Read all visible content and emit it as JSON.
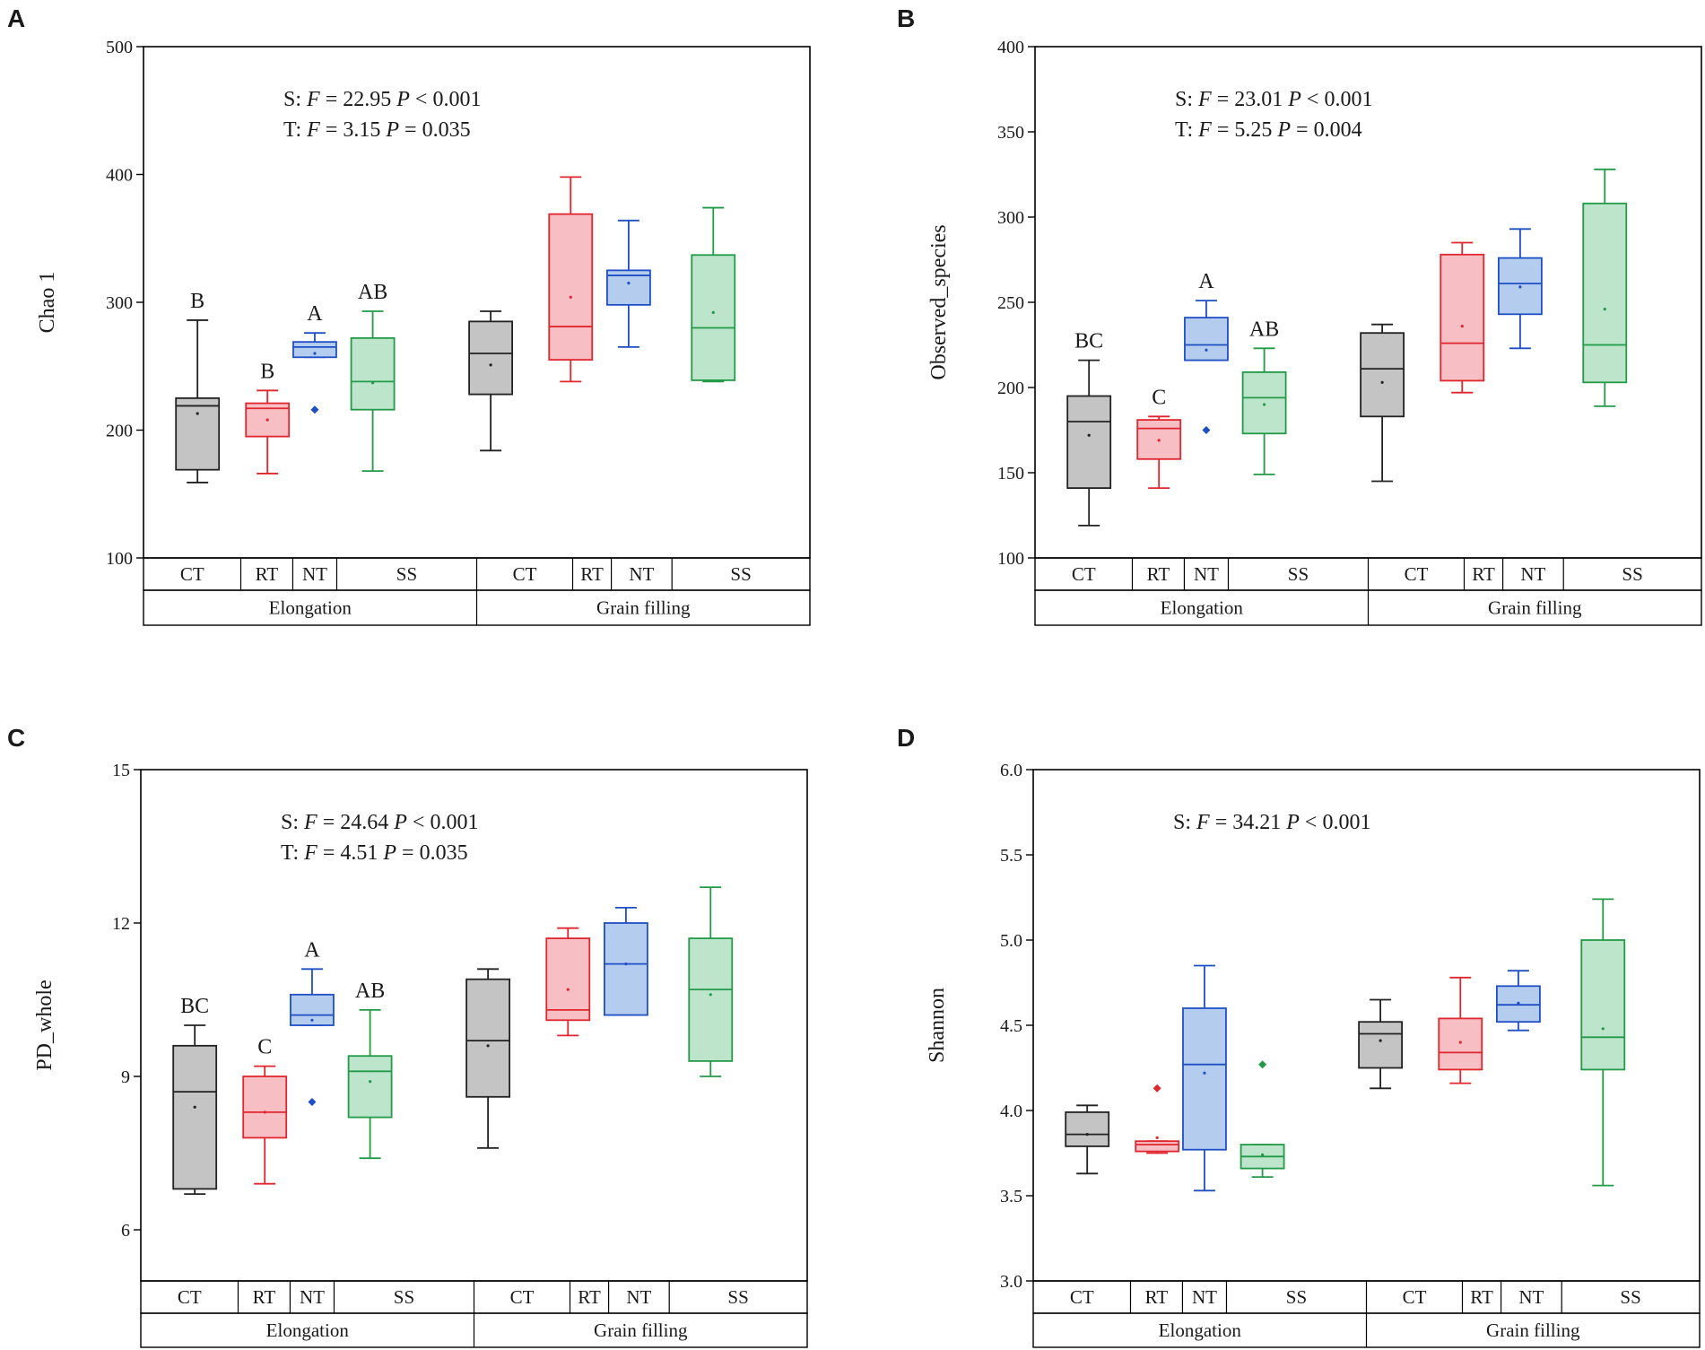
{
  "colors": {
    "CT": {
      "fill": "#c4c4c4",
      "stroke": "#222222"
    },
    "RT": {
      "fill": "#f7bfc3",
      "stroke": "#e0262e"
    },
    "NT": {
      "fill": "#b4cdee",
      "stroke": "#1f4fc4"
    },
    "SS": {
      "fill": "#bde5cc",
      "stroke": "#239a48"
    },
    "axis": "#000000"
  },
  "chart_data": [
    {
      "panel": "A",
      "type": "box",
      "ylabel": "Chao 1",
      "ylim": [
        100,
        500
      ],
      "yticks": [
        100,
        200,
        300,
        400,
        500
      ],
      "groups": [
        "CT",
        "RT",
        "NT",
        "SS",
        "CT",
        "RT",
        "NT",
        "SS"
      ],
      "stages": [
        "Elongation",
        "Grain filling"
      ],
      "stats": [
        "S: F = 22.95  P < 0.001",
        "T: F = 3.15  P = 0.035"
      ],
      "letters": [
        "B",
        "B",
        "A",
        "AB",
        "",
        "",
        "",
        ""
      ],
      "boxes": [
        {
          "min": 159,
          "q1": 169,
          "median": 219,
          "q3": 225,
          "max": 286,
          "mean": 213,
          "outliers": []
        },
        {
          "min": 166,
          "q1": 195,
          "median": 217,
          "q3": 221,
          "max": 231,
          "mean": 208,
          "outliers": []
        },
        {
          "min": 257,
          "q1": 257,
          "median": 265,
          "q3": 269,
          "max": 276,
          "mean": 260,
          "outliers": [
            216
          ]
        },
        {
          "min": 168,
          "q1": 216,
          "median": 238,
          "q3": 272,
          "max": 293,
          "mean": 237,
          "outliers": []
        },
        {
          "min": 184,
          "q1": 228,
          "median": 260,
          "q3": 285,
          "max": 293,
          "mean": 251,
          "outliers": []
        },
        {
          "min": 238,
          "q1": 255,
          "median": 281,
          "q3": 369,
          "max": 398,
          "mean": 304,
          "outliers": []
        },
        {
          "min": 265,
          "q1": 298,
          "median": 321,
          "q3": 325,
          "max": 364,
          "mean": 315,
          "outliers": []
        },
        {
          "min": 238,
          "q1": 239,
          "median": 280,
          "q3": 337,
          "max": 374,
          "mean": 292,
          "outliers": []
        }
      ]
    },
    {
      "panel": "B",
      "type": "box",
      "ylabel": "Observed_species",
      "ylim": [
        100,
        400
      ],
      "yticks": [
        100,
        150,
        200,
        250,
        300,
        350,
        400
      ],
      "groups": [
        "CT",
        "RT",
        "NT",
        "SS",
        "CT",
        "RT",
        "NT",
        "SS"
      ],
      "stages": [
        "Elongation",
        "Grain filling"
      ],
      "stats": [
        "S: F = 23.01  P < 0.001",
        "T: F = 5.25  P = 0.004"
      ],
      "letters": [
        "BC",
        "C",
        "A",
        "AB",
        "",
        "",
        "",
        ""
      ],
      "boxes": [
        {
          "min": 119,
          "q1": 141,
          "median": 180,
          "q3": 195,
          "max": 216,
          "mean": 172,
          "outliers": []
        },
        {
          "min": 141,
          "q1": 158,
          "median": 176,
          "q3": 181,
          "max": 183,
          "mean": 169,
          "outliers": []
        },
        {
          "min": 216,
          "q1": 216,
          "median": 225,
          "q3": 241,
          "max": 251,
          "mean": 222,
          "outliers": [
            175
          ]
        },
        {
          "min": 149,
          "q1": 173,
          "median": 194,
          "q3": 209,
          "max": 223,
          "mean": 190,
          "outliers": []
        },
        {
          "min": 145,
          "q1": 183,
          "median": 211,
          "q3": 232,
          "max": 237,
          "mean": 203,
          "outliers": []
        },
        {
          "min": 197,
          "q1": 204,
          "median": 226,
          "q3": 278,
          "max": 285,
          "mean": 236,
          "outliers": []
        },
        {
          "min": 223,
          "q1": 243,
          "median": 261,
          "q3": 276,
          "max": 293,
          "mean": 259,
          "outliers": []
        },
        {
          "min": 189,
          "q1": 203,
          "median": 225,
          "q3": 308,
          "max": 328,
          "mean": 246,
          "outliers": []
        }
      ]
    },
    {
      "panel": "C",
      "type": "box",
      "ylabel": "PD_whole",
      "ylim": [
        5,
        15
      ],
      "yticks": [
        6,
        9,
        12,
        15
      ],
      "groups": [
        "CT",
        "RT",
        "NT",
        "SS",
        "CT",
        "RT",
        "NT",
        "SS"
      ],
      "stages": [
        "Elongation",
        "Grain filling"
      ],
      "stats": [
        "S: F = 24.64  P < 0.001",
        "T: F = 4.51  P = 0.035"
      ],
      "letters": [
        "BC",
        "C",
        "A",
        "AB",
        "",
        "",
        "",
        ""
      ],
      "boxes": [
        {
          "min": 6.7,
          "q1": 6.8,
          "median": 8.7,
          "q3": 9.6,
          "max": 10.0,
          "mean": 8.4,
          "outliers": []
        },
        {
          "min": 6.9,
          "q1": 7.8,
          "median": 8.3,
          "q3": 9.0,
          "max": 9.2,
          "mean": 8.3,
          "outliers": []
        },
        {
          "min": 10.0,
          "q1": 10.0,
          "median": 10.2,
          "q3": 10.6,
          "max": 11.1,
          "mean": 10.1,
          "outliers": [
            8.5
          ]
        },
        {
          "min": 7.4,
          "q1": 8.2,
          "median": 9.1,
          "q3": 9.4,
          "max": 10.3,
          "mean": 8.9,
          "outliers": []
        },
        {
          "min": 7.6,
          "q1": 8.6,
          "median": 9.7,
          "q3": 10.9,
          "max": 11.1,
          "mean": 9.6,
          "outliers": []
        },
        {
          "min": 9.8,
          "q1": 10.1,
          "median": 10.3,
          "q3": 11.7,
          "max": 11.9,
          "mean": 10.7,
          "outliers": []
        },
        {
          "min": 10.2,
          "q1": 10.2,
          "median": 11.2,
          "q3": 12.0,
          "max": 12.3,
          "mean": 11.2,
          "outliers": []
        },
        {
          "min": 9.0,
          "q1": 9.3,
          "median": 10.7,
          "q3": 11.7,
          "max": 12.7,
          "mean": 10.6,
          "outliers": []
        }
      ]
    },
    {
      "panel": "D",
      "type": "box",
      "ylabel": "Shannon",
      "ylim": [
        3.0,
        6.0
      ],
      "yticks": [
        "3.0",
        "3.5",
        "4.0",
        "4.5",
        "5.0",
        "5.5",
        "6.0"
      ],
      "groups": [
        "CT",
        "RT",
        "NT",
        "SS",
        "CT",
        "RT",
        "NT",
        "SS"
      ],
      "stages": [
        "Elongation",
        "Grain filling"
      ],
      "stats": [
        "S: F = 34.21  P < 0.001"
      ],
      "letters": [
        "",
        "",
        "",
        "",
        "",
        "",
        "",
        ""
      ],
      "boxes": [
        {
          "min": 3.63,
          "q1": 3.79,
          "median": 3.86,
          "q3": 3.99,
          "max": 4.03,
          "mean": 3.86,
          "outliers": []
        },
        {
          "min": 3.75,
          "q1": 3.76,
          "median": 3.8,
          "q3": 3.82,
          "max": 3.82,
          "mean": 3.84,
          "outliers": [
            4.13
          ]
        },
        {
          "min": 3.53,
          "q1": 3.77,
          "median": 4.27,
          "q3": 4.6,
          "max": 4.85,
          "mean": 4.22,
          "outliers": []
        },
        {
          "min": 3.61,
          "q1": 3.66,
          "median": 3.73,
          "q3": 3.8,
          "max": 3.8,
          "mean": 3.74,
          "outliers": [
            4.27
          ]
        },
        {
          "min": 4.13,
          "q1": 4.25,
          "median": 4.45,
          "q3": 4.52,
          "max": 4.65,
          "mean": 4.41,
          "outliers": []
        },
        {
          "min": 4.16,
          "q1": 4.24,
          "median": 4.34,
          "q3": 4.54,
          "max": 4.78,
          "mean": 4.4,
          "outliers": []
        },
        {
          "min": 4.47,
          "q1": 4.52,
          "median": 4.62,
          "q3": 4.73,
          "max": 4.82,
          "mean": 4.63,
          "outliers": []
        },
        {
          "min": 3.56,
          "q1": 4.24,
          "median": 4.43,
          "q3": 5.0,
          "max": 5.24,
          "mean": 4.48,
          "outliers": []
        }
      ]
    }
  ]
}
